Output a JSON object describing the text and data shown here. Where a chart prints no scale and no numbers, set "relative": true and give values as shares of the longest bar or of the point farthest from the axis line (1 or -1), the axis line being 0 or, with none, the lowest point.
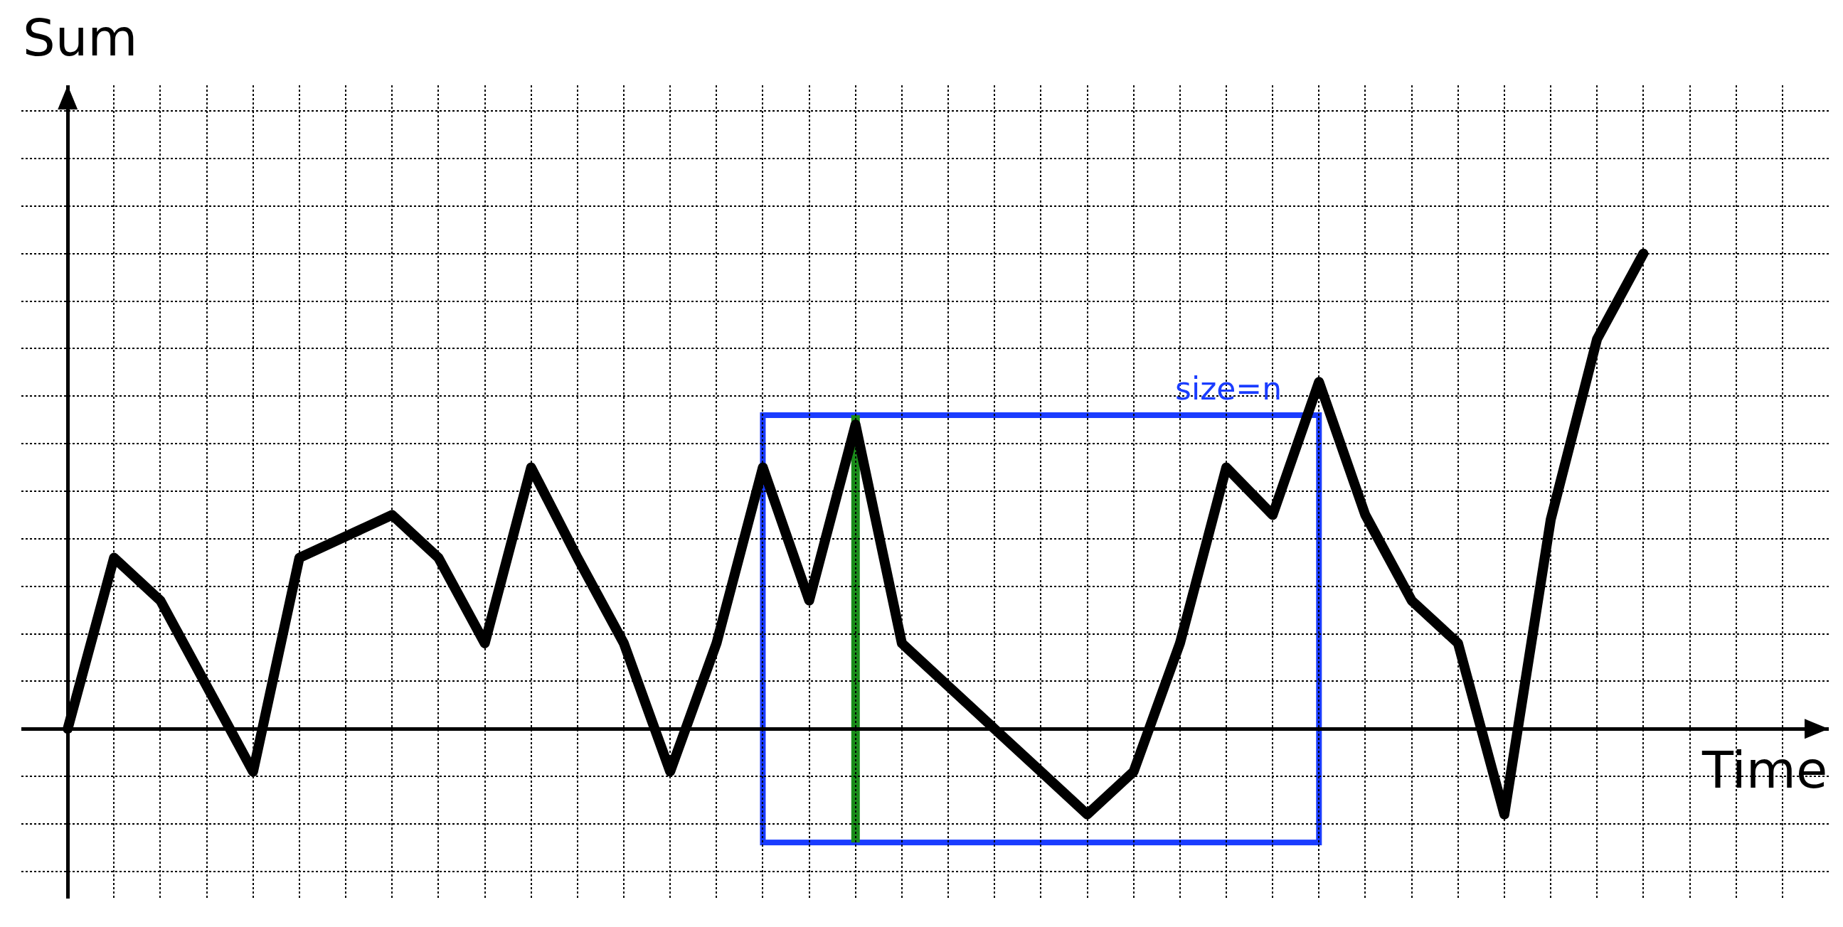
{
  "chart_data": {
    "type": "line",
    "xlabel": "Time",
    "ylabel": "Sum",
    "relative": true,
    "grid": true,
    "marker": "none",
    "line_style": "solid",
    "categories": [
      null,
      null,
      null,
      null,
      null,
      null,
      null,
      null,
      null,
      null,
      null,
      null,
      null,
      null,
      null,
      null,
      null,
      null,
      null,
      null,
      null,
      null,
      null,
      null,
      null,
      null,
      null,
      null,
      null,
      null,
      null,
      null,
      null,
      null,
      null
    ],
    "series": [
      {
        "color": "#000000",
        "values": [
          0,
          0.36,
          0.27,
          0.09,
          -0.09,
          0.36,
          null,
          0.45,
          0.36,
          0.18,
          0.55,
          0.36,
          0.18,
          -0.09,
          0.18,
          0.55,
          0.27,
          0.64,
          0.18,
          0.09,
          0,
          -0.09,
          -0.18,
          -0.09,
          0.18,
          0.55,
          0.45,
          0.73,
          0.45,
          0.27,
          0.18,
          -0.18,
          0.44,
          0.82,
          1
        ]
      }
    ],
    "annotations": [
      "size=n"
    ]
  }
}
